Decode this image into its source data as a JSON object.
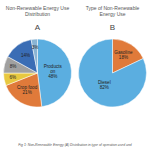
{
  "chart_data": [
    {
      "type": "pie",
      "title": "A",
      "subtitle": "Non-Renewable Energy Use\nDistribution",
      "values": [
        48,
        21,
        6,
        8,
        14,
        3
      ],
      "colors": [
        "#5baee0",
        "#e07a3a",
        "#e8c840",
        "#a0a0a0",
        "#3a6db5",
        "#8ab4d4"
      ],
      "data_labels": true,
      "value_labels": [
        "Products\non\n48%",
        "Crop food\n21%",
        "6%",
        "8%",
        "14%",
        "3%"
      ]
    },
    {
      "type": "pie",
      "title": "B",
      "subtitle": "Type of Non-Renewable\nEnergy Use",
      "values": [
        18,
        82
      ],
      "colors": [
        "#e07a3a",
        "#5baee0"
      ],
      "data_labels": true,
      "value_labels": [
        "Gasoline\n18%",
        "Diesel\n82%"
      ]
    }
  ],
  "caption": "Fig 1: Non-Renewable Energy (A) Distribution in type of operation used and"
}
